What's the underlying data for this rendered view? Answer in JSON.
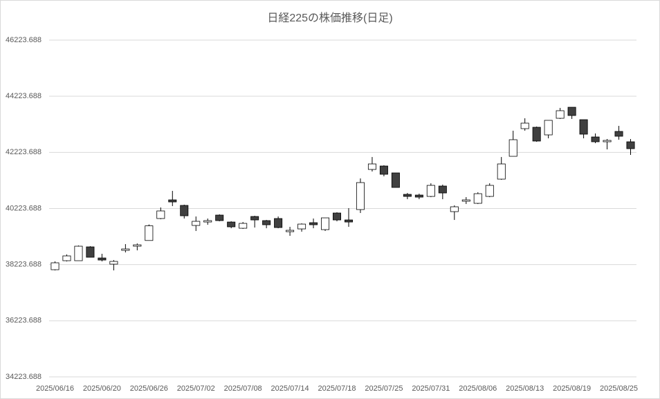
{
  "chart_data": {
    "type": "candlestick",
    "title": "日経225の株価推移(日足)",
    "categories": [
      "2025/06/16",
      null,
      null,
      null,
      "2025/06/20",
      null,
      null,
      null,
      "2025/06/26",
      null,
      null,
      null,
      "2025/07/02",
      null,
      null,
      null,
      "2025/07/08",
      null,
      null,
      null,
      "2025/07/14",
      null,
      null,
      null,
      "2025/07/18",
      null,
      null,
      null,
      "2025/07/25",
      null,
      null,
      null,
      "2025/07/31",
      null,
      null,
      null,
      "2025/08/06",
      null,
      null,
      null,
      "2025/08/13",
      null,
      null,
      null,
      "2025/08/19",
      null,
      null,
      null,
      "2025/08/25",
      null
    ],
    "open": [
      38042,
      38363,
      38363,
      38856,
      38461,
      38240,
      38732,
      38880,
      39083,
      39866,
      40531,
      40334,
      39619,
      39742,
      39989,
      39742,
      39520,
      39939,
      39792,
      39866,
      39397,
      39496,
      39718,
      39471,
      40063,
      39816,
      40186,
      41615,
      41738,
      41492,
      40728,
      40703,
      40654,
      41024,
      40112,
      40482,
      40408,
      40654,
      41270,
      42083,
      43069,
      43118,
      42847,
      43438,
      43832,
      43389,
      42773,
      42601,
      42970,
      42601
    ],
    "high": [
      38338,
      38585,
      38905,
      38880,
      38609,
      38387,
      38954,
      38978,
      39655,
      40260,
      40851,
      40359,
      39939,
      39866,
      40014,
      39767,
      39742,
      39964,
      39816,
      39939,
      39570,
      39693,
      39866,
      39890,
      40088,
      40235,
      41295,
      42058,
      41763,
      41492,
      40777,
      40752,
      41122,
      41073,
      40334,
      40629,
      40801,
      41122,
      42058,
      42995,
      43438,
      43143,
      43365,
      43808,
      43832,
      43389,
      42897,
      42699,
      43167,
      42699
    ],
    "low": [
      38018,
      38338,
      38363,
      38486,
      38338,
      38018,
      38658,
      38732,
      39083,
      39841,
      40309,
      39866,
      39422,
      39644,
      39767,
      39520,
      39496,
      39545,
      39520,
      39520,
      39249,
      39397,
      39520,
      39422,
      39767,
      39570,
      40063,
      41541,
      41369,
      40974,
      40555,
      40555,
      40629,
      40555,
      39816,
      40383,
      40383,
      40629,
      41246,
      42083,
      42995,
      42601,
      42724,
      43414,
      43414,
      42724,
      42551,
      42330,
      42675,
      42133
    ],
    "close": [
      38289,
      38535,
      38880,
      38486,
      38387,
      38338,
      38782,
      38929,
      39606,
      40137,
      40457,
      39964,
      39767,
      39792,
      39792,
      39570,
      39693,
      39816,
      39644,
      39545,
      39447,
      39668,
      39644,
      39890,
      39816,
      39742,
      41147,
      41812,
      41443,
      40974,
      40654,
      40629,
      41048,
      40777,
      40285,
      40531,
      40752,
      41048,
      41812,
      42675,
      43266,
      42626,
      43365,
      43709,
      43537,
      42872,
      42601,
      42650,
      42798,
      42355
    ],
    "up_color": "#ffffff",
    "down_color": "#404040",
    "ylim": [
      34223.688,
      46223.688
    ],
    "yticks": [
      34223.688,
      36223.688,
      38223.688,
      40223.688,
      42223.688,
      44223.688,
      46223.688
    ],
    "grid": true
  }
}
